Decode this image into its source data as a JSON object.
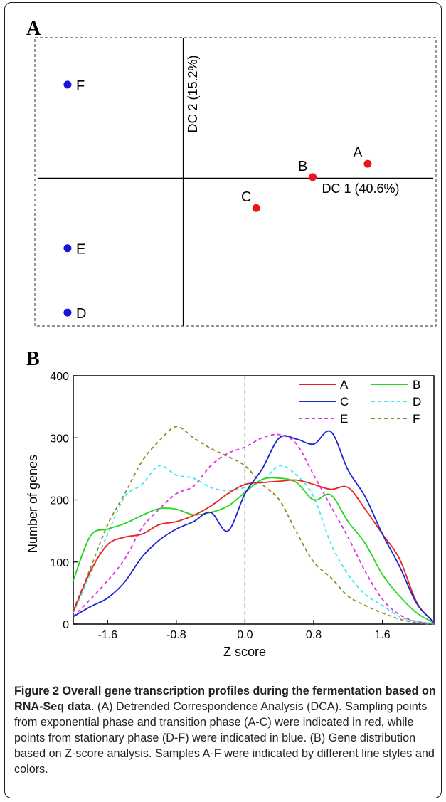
{
  "chart_data": [
    {
      "panel": "A",
      "type": "scatter",
      "xlabel": "DC 1 (40.6%)",
      "ylabel": "DC 2 (15.2%)",
      "xlim": [
        -1.0,
        1.7
      ],
      "ylim": [
        -1.1,
        1.05
      ],
      "grid": false,
      "points": [
        {
          "label": "A",
          "x": 1.24,
          "y": 0.11,
          "color": "#e8151b"
        },
        {
          "label": "B",
          "x": 0.87,
          "y": 0.01,
          "color": "#e8151b"
        },
        {
          "label": "C",
          "x": 0.49,
          "y": -0.22,
          "color": "#e8151b"
        },
        {
          "label": "D",
          "x": -0.78,
          "y": -1.0,
          "color": "#1515e0"
        },
        {
          "label": "E",
          "x": -0.78,
          "y": -0.52,
          "color": "#1515e0"
        },
        {
          "label": "F",
          "x": -0.78,
          "y": 0.7,
          "color": "#1515e0"
        }
      ]
    },
    {
      "panel": "B",
      "type": "line",
      "xlabel": "Z score",
      "ylabel": "Number of genes",
      "xlim": [
        -2.0,
        2.2
      ],
      "ylim": [
        0,
        400
      ],
      "xticks": [
        "-1.6",
        "-0.8",
        "0.0",
        "0.8",
        "1.6"
      ],
      "yticks": [
        "0",
        "100",
        "200",
        "300",
        "400"
      ],
      "grid": false,
      "legend_position": "top-right",
      "x": [
        -2.0,
        -1.8,
        -1.6,
        -1.4,
        -1.2,
        -1.0,
        -0.8,
        -0.6,
        -0.4,
        -0.2,
        0.0,
        0.2,
        0.4,
        0.6,
        0.8,
        1.0,
        1.2,
        1.4,
        1.6,
        1.8,
        2.0,
        2.2
      ],
      "series": [
        {
          "name": "A",
          "color": "#e8231f",
          "dash": "",
          "values": [
            20,
            85,
            128,
            140,
            145,
            160,
            165,
            175,
            190,
            210,
            225,
            228,
            230,
            232,
            225,
            217,
            220,
            185,
            145,
            105,
            35,
            3
          ]
        },
        {
          "name": "B",
          "color": "#22d61e",
          "dash": "",
          "values": [
            70,
            142,
            153,
            162,
            175,
            186,
            185,
            176,
            180,
            190,
            212,
            233,
            235,
            228,
            200,
            208,
            165,
            130,
            80,
            45,
            18,
            2
          ]
        },
        {
          "name": "C",
          "color": "#1b26d1",
          "dash": "",
          "values": [
            12,
            28,
            42,
            68,
            108,
            135,
            153,
            165,
            180,
            150,
            210,
            250,
            300,
            298,
            290,
            310,
            248,
            205,
            145,
            93,
            33,
            3
          ]
        },
        {
          "name": "D",
          "color": "#3ee8f2",
          "dash": "5,4",
          "values": [
            18,
            80,
            145,
            205,
            225,
            255,
            240,
            235,
            220,
            215,
            220,
            230,
            255,
            240,
            205,
            130,
            80,
            48,
            30,
            12,
            4,
            1
          ]
        },
        {
          "name": "E",
          "color": "#e22fe6",
          "dash": "5,4",
          "values": [
            12,
            40,
            70,
            105,
            155,
            185,
            210,
            222,
            255,
            275,
            285,
            300,
            305,
            290,
            240,
            190,
            140,
            85,
            40,
            15,
            4,
            1
          ]
        },
        {
          "name": "F",
          "color": "#8c8a1e",
          "dash": "5,4",
          "values": [
            22,
            90,
            160,
            210,
            262,
            295,
            318,
            300,
            283,
            270,
            255,
            225,
            200,
            148,
            100,
            75,
            45,
            30,
            18,
            8,
            2,
            0
          ]
        }
      ]
    }
  ],
  "panels": {
    "a_label": "A",
    "b_label": "B"
  },
  "caption": {
    "lead": "Figure 2 Overall gene transcription profiles during the fermentation based on RNA-Seq data",
    "body": ". (A) Detrended Correspondence Analysis (DCA). Sampling points from exponential phase and transition phase (A-C) were indicated in red, while points from stationary phase (D-F) were indicated in blue. (B) Gene distribution based on Z-score analysis. Samples A-F were indicated by different line styles and colors."
  }
}
